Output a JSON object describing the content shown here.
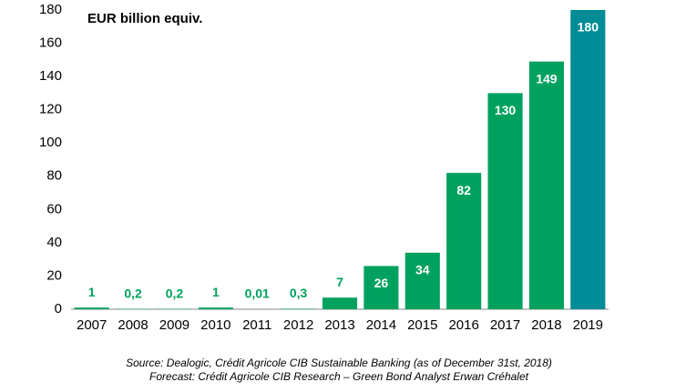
{
  "chart_data": {
    "type": "bar",
    "annotation": "EUR billion  equiv.",
    "categories": [
      "2007",
      "2008",
      "2009",
      "2010",
      "2011",
      "2012",
      "2013",
      "2014",
      "2015",
      "2016",
      "2017",
      "2018",
      "2019"
    ],
    "values": [
      1,
      0.2,
      0.2,
      1,
      0.01,
      0.3,
      7,
      26,
      34,
      82,
      130,
      149,
      180
    ],
    "value_labels": [
      "1",
      "0,2",
      "0,2",
      "1",
      "0,01",
      "0,3",
      "7",
      "26",
      "34",
      "82",
      "130",
      "149",
      "180"
    ],
    "colors": [
      "#00a15e",
      "#00a15e",
      "#00a15e",
      "#00a15e",
      "#00a15e",
      "#00a15e",
      "#00a15e",
      "#00a15e",
      "#00a15e",
      "#00a15e",
      "#00a15e",
      "#00a15e",
      "#008c96"
    ],
    "ylim": [
      0,
      180
    ],
    "yticks": [
      0,
      20,
      40,
      60,
      80,
      100,
      120,
      140,
      160,
      180
    ],
    "source": "Source: Dealogic, Crédit Agricole CIB Sustainable Banking (as of December 31st, 2018)",
    "forecast_note": "Forecast: Crédit Agricole CIB Research – Green Bond Analyst Erwan Créhalet"
  }
}
